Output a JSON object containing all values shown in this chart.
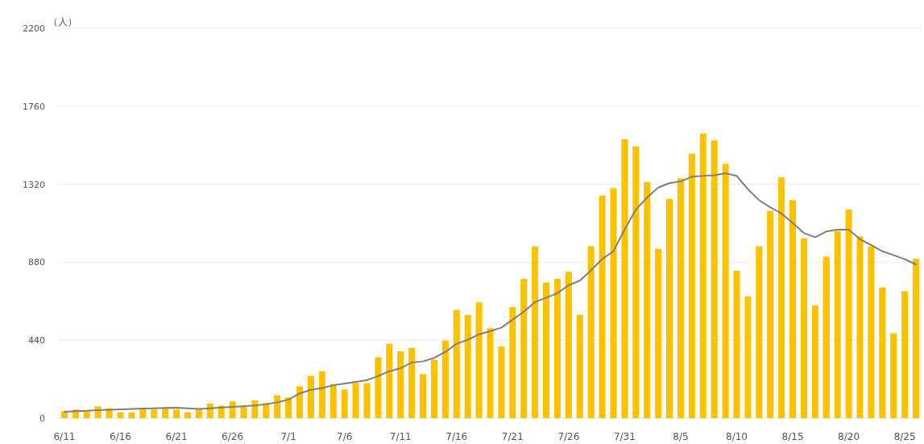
{
  "chart_data": {
    "type": "bar",
    "ylabel": "（人）",
    "categories": [
      "6/11",
      null,
      null,
      null,
      null,
      "6/16",
      null,
      null,
      null,
      null,
      "6/21",
      null,
      null,
      null,
      null,
      "6/26",
      null,
      null,
      null,
      null,
      "7/1",
      null,
      null,
      null,
      null,
      "7/6",
      null,
      null,
      null,
      null,
      "7/11",
      null,
      null,
      null,
      null,
      "7/16",
      null,
      null,
      null,
      null,
      "7/21",
      null,
      null,
      null,
      null,
      "7/26",
      null,
      null,
      null,
      null,
      "7/31",
      null,
      null,
      null,
      null,
      "8/5",
      null,
      null,
      null,
      null,
      "8/10",
      null,
      null,
      null,
      null,
      "8/15",
      null,
      null,
      null,
      null,
      "8/20",
      null,
      null,
      null,
      null,
      "8/25",
      null
    ],
    "series": [
      {
        "color": "#fcc200",
        "values": [
          38,
          49,
          38,
          67,
          56,
          33,
          33,
          56,
          49,
          59,
          49,
          33,
          49,
          83,
          71,
          94,
          71,
          101,
          86,
          129,
          117,
          180,
          238,
          265,
          192,
          162,
          198,
          198,
          344,
          420,
          377,
          397,
          248,
          329,
          438,
          611,
          582,
          653,
          508,
          405,
          627,
          786,
          969,
          765,
          786,
          826,
          583,
          970,
          1256,
          1298,
          1574,
          1533,
          1332,
          955,
          1237,
          1353,
          1492,
          1606,
          1567,
          1435,
          832,
          688,
          970,
          1169,
          1359,
          1230,
          1015,
          636,
          912,
          1056,
          1177,
          1026,
          970,
          738,
          480,
          717,
          899
        ]
      },
      {
        "type": "line",
        "color": "#7f7f7f",
        "values": [
          36,
          40,
          42,
          46,
          48,
          50,
          52,
          54,
          56,
          58,
          59,
          56,
          52,
          56,
          60,
          64,
          68,
          72,
          79,
          90,
          105,
          140,
          160,
          170,
          186,
          195,
          205,
          215,
          238,
          265,
          282,
          314,
          321,
          340,
          374,
          420,
          442,
          473,
          491,
          511,
          556,
          601,
          655,
          680,
          705,
          750,
          776,
          834,
          898,
          942,
          1065,
          1177,
          1245,
          1301,
          1326,
          1336,
          1362,
          1367,
          1370,
          1382,
          1367,
          1291,
          1230,
          1189,
          1155,
          1101,
          1044,
          1021,
          1053,
          1064,
          1064,
          1010,
          977,
          942,
          920,
          897,
          867
        ]
      }
    ],
    "ylim": [
      0,
      2200
    ],
    "yticks": [
      0,
      440,
      880,
      1320,
      1760,
      2200
    ],
    "grid": "y"
  }
}
